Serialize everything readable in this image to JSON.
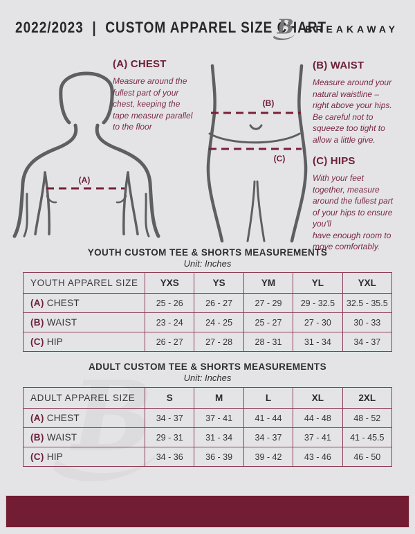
{
  "header": {
    "title": "2022/2023  |  CUSTOM APPAREL SIZE CHART",
    "brand": "BREAKAWAY"
  },
  "instructions": {
    "chest": {
      "heading": "(A) CHEST",
      "body": "Measure around the\nfullest part of your\nchest, keeping the\ntape measure parallel\nto the floor"
    },
    "waist": {
      "heading": "(B) WAIST",
      "body": "Measure around your\nnatural waistline –\nright above your hips.\nBe careful not to\nsqueeze too tight to\nallow a little give."
    },
    "hips": {
      "heading": "(C) HIPS",
      "body": "With your feet\ntogether, measure\naround the fullest part\nof your hips to ensure\nyou'll\nhave enough room to\nmove comfortably."
    }
  },
  "diagram_labels": {
    "a": "(A)",
    "b": "(B)",
    "c": "(C)"
  },
  "youth_section": {
    "title": "YOUTH CUSTOM TEE & SHORTS MEASUREMENTS",
    "unit": "Unit: Inches"
  },
  "adult_section": {
    "title": "ADULT CUSTOM TEE & SHORTS MEASUREMENTS",
    "unit": "Unit: Inches"
  },
  "youth_table": {
    "label_header": "YOUTH APPAREL SIZE",
    "sizes": [
      "YXS",
      "YS",
      "YM",
      "YL",
      "YXL"
    ],
    "rows": [
      {
        "prefix": "(A)",
        "label": "CHEST",
        "values": [
          "25 - 26",
          "26 - 27",
          "27 - 29",
          "29 - 32.5",
          "32.5 - 35.5"
        ]
      },
      {
        "prefix": "(B)",
        "label": "WAIST",
        "values": [
          "23 - 24",
          "24 - 25",
          "25 - 27",
          "27 - 30",
          "30 - 33"
        ]
      },
      {
        "prefix": "(C)",
        "label": "HIP",
        "values": [
          "26 - 27",
          "27 - 28",
          "28 - 31",
          "31 - 34",
          "34 - 37"
        ]
      }
    ]
  },
  "adult_table": {
    "label_header": "ADULT APPAREL SIZE",
    "sizes": [
      "S",
      "M",
      "L",
      "XL",
      "2XL"
    ],
    "rows": [
      {
        "prefix": "(A)",
        "label": "CHEST",
        "values": [
          "34 - 37",
          "37 - 41",
          "41 - 44",
          "44 - 48",
          "48 - 52"
        ]
      },
      {
        "prefix": "(B)",
        "label": "WAIST",
        "values": [
          "29 - 31",
          "31 - 34",
          "34 - 37",
          "37 - 41",
          "41 - 45.5"
        ]
      },
      {
        "prefix": "(C)",
        "label": "HIP",
        "values": [
          "34 - 36",
          "36 - 39",
          "39 - 42",
          "43 - 46",
          "46 - 50"
        ]
      }
    ]
  },
  "colors": {
    "background": "#e4e4e6",
    "maroon_heading": "#6e2038",
    "maroon_body_text": "#7b2a44",
    "table_border": "#8d3c54",
    "footer_bar": "#721d33",
    "figure_outline": "#5e5f62",
    "watermark": "#d8d8da"
  }
}
